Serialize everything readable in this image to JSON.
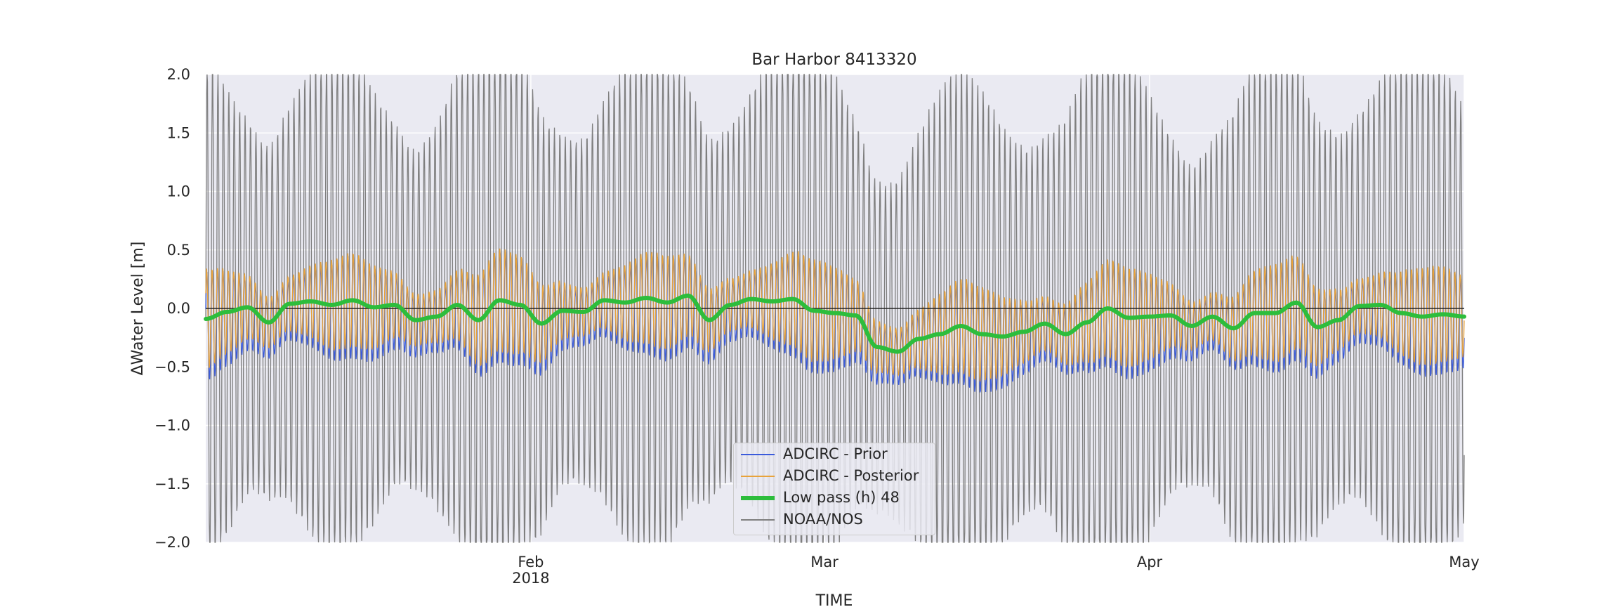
{
  "chart_data": {
    "type": "line",
    "title": "Bar Harbor  8413320",
    "xlabel": "TIME",
    "ylabel": "ΔWater Level [m]",
    "ylim": [
      -2.0,
      2.0
    ],
    "yticks": [
      "2.0",
      "1.5",
      "1.0",
      "0.5",
      "0.0",
      "−0.5",
      "−1.0",
      "−1.5",
      "−2.0"
    ],
    "xlim": [
      "2018-01-01",
      "2018-05-01"
    ],
    "xticks": [
      {
        "date": "2018-02-01",
        "label": "Feb",
        "sublabel": "2018"
      },
      {
        "date": "2018-03-01",
        "label": "Mar",
        "sublabel": ""
      },
      {
        "date": "2018-04-01",
        "label": "Apr",
        "sublabel": ""
      },
      {
        "date": "2018-05-01",
        "label": "May",
        "sublabel": ""
      }
    ],
    "grid": true,
    "legend_position": "lower center",
    "series": [
      {
        "name": "ADCIRC - Prior",
        "color": "#3b5bdb",
        "kind": "oscillating",
        "tidal_amplitude_approx": 0.35
      },
      {
        "name": "ADCIRC - Posterior",
        "color": "#e8a33b",
        "kind": "oscillating",
        "tidal_amplitude_approx": 0.32
      },
      {
        "name": "Low pass (h) 48",
        "color": "#2dbd3c",
        "kind": "smooth",
        "x": [
          "2018-01-01",
          "2018-01-03",
          "2018-01-05",
          "2018-01-07",
          "2018-01-09",
          "2018-01-11",
          "2018-01-13",
          "2018-01-15",
          "2018-01-17",
          "2018-01-19",
          "2018-01-21",
          "2018-01-23",
          "2018-01-25",
          "2018-01-27",
          "2018-01-29",
          "2018-01-31",
          "2018-02-02",
          "2018-02-04",
          "2018-02-06",
          "2018-02-08",
          "2018-02-10",
          "2018-02-12",
          "2018-02-14",
          "2018-02-16",
          "2018-02-18",
          "2018-02-20",
          "2018-02-22",
          "2018-02-24",
          "2018-02-26",
          "2018-02-28",
          "2018-03-02",
          "2018-03-04",
          "2018-03-06",
          "2018-03-08",
          "2018-03-10",
          "2018-03-12",
          "2018-03-14",
          "2018-03-16",
          "2018-03-18",
          "2018-03-20",
          "2018-03-22",
          "2018-03-24",
          "2018-03-26",
          "2018-03-28",
          "2018-03-30",
          "2018-04-01",
          "2018-04-03",
          "2018-04-05",
          "2018-04-07",
          "2018-04-09",
          "2018-04-11",
          "2018-04-13",
          "2018-04-15",
          "2018-04-17",
          "2018-04-19",
          "2018-04-21",
          "2018-04-23",
          "2018-04-25",
          "2018-04-27",
          "2018-04-29",
          "2018-05-01"
        ],
        "y": [
          -0.09,
          -0.03,
          0.01,
          -0.12,
          0.04,
          0.06,
          0.03,
          0.07,
          0.01,
          0.03,
          -0.1,
          -0.07,
          0.03,
          -0.1,
          0.07,
          0.03,
          -0.13,
          -0.02,
          -0.03,
          0.07,
          0.05,
          0.09,
          0.05,
          0.11,
          -0.1,
          0.03,
          0.08,
          0.06,
          0.08,
          -0.02,
          -0.04,
          -0.06,
          -0.33,
          -0.37,
          -0.26,
          -0.22,
          -0.15,
          -0.22,
          -0.24,
          -0.2,
          -0.13,
          -0.22,
          -0.12,
          0.0,
          -0.08,
          -0.07,
          -0.06,
          -0.15,
          -0.07,
          -0.17,
          -0.04,
          -0.04,
          0.05,
          -0.16,
          -0.1,
          0.02,
          0.03,
          -0.04,
          -0.07,
          -0.05,
          -0.07
        ]
      },
      {
        "name": "NOAA/NOS",
        "color": "#7f7f7f",
        "kind": "oscillating",
        "tidal_amplitude_approx": 1.9
      }
    ]
  }
}
